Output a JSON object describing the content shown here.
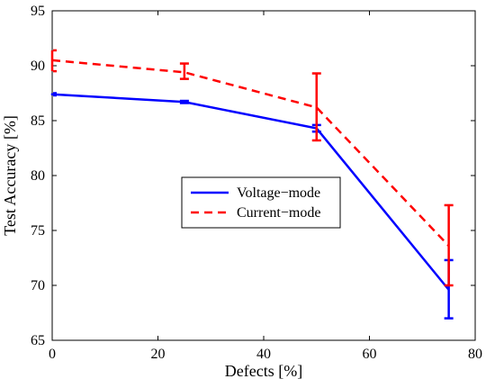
{
  "chart_data": {
    "type": "line",
    "xlabel": "Defects [%]",
    "ylabel": "Test Accuracy [%]",
    "xlim": [
      0,
      80
    ],
    "ylim": [
      65,
      95
    ],
    "x_ticks": [
      0,
      20,
      40,
      60,
      80
    ],
    "y_ticks": [
      65,
      70,
      75,
      80,
      85,
      90,
      95
    ],
    "x_tick_labels": [
      "0",
      "20",
      "40",
      "60",
      "80"
    ],
    "y_tick_labels": [
      "65",
      "70",
      "75",
      "80",
      "85",
      "90",
      "95"
    ],
    "grid": false,
    "legend_position": "center",
    "series": [
      {
        "name": "Voltage−mode",
        "color": "#0000ff",
        "line_style": "solid",
        "x": [
          0,
          25,
          50,
          75
        ],
        "y": [
          87.4,
          86.7,
          84.3,
          69.6
        ],
        "err_low": [
          87.3,
          86.6,
          84.0,
          67.0
        ],
        "err_high": [
          87.5,
          86.8,
          84.6,
          72.3
        ]
      },
      {
        "name": "Current−mode",
        "color": "#ff0000",
        "line_style": "dashed",
        "x": [
          0,
          25,
          50,
          75
        ],
        "y": [
          90.5,
          89.4,
          86.2,
          73.6
        ],
        "err_low": [
          89.5,
          88.8,
          83.2,
          70.0
        ],
        "err_high": [
          91.4,
          90.2,
          89.3,
          77.3
        ]
      }
    ]
  }
}
